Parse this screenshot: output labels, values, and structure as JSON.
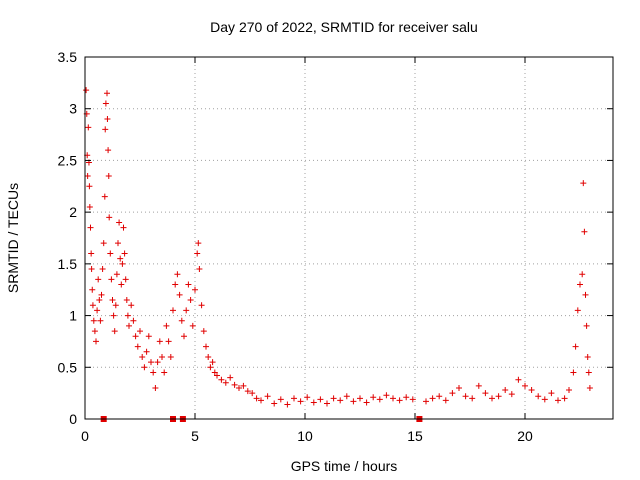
{
  "chart_data": {
    "type": "scatter",
    "title": "Day 270 of 2022, SRMTID for receiver salu",
    "xlabel": "GPS time / hours",
    "ylabel": "SRMTID / TECUs",
    "xlim": [
      0,
      24
    ],
    "ylim": [
      0,
      3.5
    ],
    "xticks": [
      0,
      5,
      10,
      15,
      20
    ],
    "xtick_labels": [
      "0",
      "5",
      "10",
      "15",
      "20"
    ],
    "yticks": [
      0,
      0.5,
      1,
      1.5,
      2,
      2.5,
      3,
      3.5
    ],
    "ytick_labels": [
      "0",
      "0.5",
      "1",
      "1.5",
      "2",
      "2.5",
      "3",
      "3.5"
    ],
    "grid": true,
    "marker": "+",
    "color": "#e00000",
    "series": [
      {
        "name": "SRMTID",
        "points": [
          [
            0.05,
            3.18
          ],
          [
            0.08,
            2.95
          ],
          [
            0.1,
            2.55
          ],
          [
            0.12,
            2.35
          ],
          [
            0.15,
            2.82
          ],
          [
            0.18,
            2.48
          ],
          [
            0.2,
            2.25
          ],
          [
            0.22,
            2.05
          ],
          [
            0.25,
            1.85
          ],
          [
            0.28,
            1.6
          ],
          [
            0.3,
            1.45
          ],
          [
            0.33,
            1.25
          ],
          [
            0.36,
            1.1
          ],
          [
            0.4,
            0.95
          ],
          [
            0.45,
            0.85
          ],
          [
            0.5,
            0.75
          ],
          [
            0.55,
            1.05
          ],
          [
            0.6,
            1.35
          ],
          [
            0.65,
            1.15
          ],
          [
            0.7,
            0.95
          ],
          [
            0.75,
            1.2
          ],
          [
            0.8,
            1.45
          ],
          [
            0.85,
            1.7
          ],
          [
            0.9,
            2.15
          ],
          [
            0.92,
            2.8
          ],
          [
            0.95,
            3.05
          ],
          [
            1.0,
            3.15
          ],
          [
            1.02,
            2.9
          ],
          [
            1.05,
            2.6
          ],
          [
            1.08,
            2.35
          ],
          [
            1.1,
            1.95
          ],
          [
            1.15,
            1.6
          ],
          [
            1.2,
            1.35
          ],
          [
            1.25,
            1.15
          ],
          [
            1.3,
            1.0
          ],
          [
            1.35,
            0.85
          ],
          [
            1.4,
            1.1
          ],
          [
            1.45,
            1.4
          ],
          [
            1.5,
            1.7
          ],
          [
            1.55,
            1.9
          ],
          [
            1.6,
            1.55
          ],
          [
            1.65,
            1.3
          ],
          [
            1.7,
            1.5
          ],
          [
            1.75,
            1.85
          ],
          [
            1.8,
            1.6
          ],
          [
            1.85,
            1.35
          ],
          [
            1.9,
            1.15
          ],
          [
            1.95,
            1.0
          ],
          [
            2.0,
            0.9
          ],
          [
            2.1,
            1.1
          ],
          [
            2.2,
            0.95
          ],
          [
            2.3,
            0.8
          ],
          [
            2.4,
            0.7
          ],
          [
            2.5,
            0.85
          ],
          [
            2.6,
            0.6
          ],
          [
            2.7,
            0.5
          ],
          [
            2.8,
            0.65
          ],
          [
            2.9,
            0.8
          ],
          [
            3.0,
            0.55
          ],
          [
            3.1,
            0.45
          ],
          [
            3.2,
            0.3
          ],
          [
            3.3,
            0.55
          ],
          [
            3.4,
            0.75
          ],
          [
            3.5,
            0.6
          ],
          [
            3.6,
            0.45
          ],
          [
            3.7,
            0.9
          ],
          [
            3.8,
            0.75
          ],
          [
            3.9,
            0.6
          ],
          [
            4.0,
            1.05
          ],
          [
            4.1,
            1.3
          ],
          [
            4.2,
            1.4
          ],
          [
            4.3,
            1.2
          ],
          [
            4.4,
            0.95
          ],
          [
            4.5,
            0.8
          ],
          [
            4.6,
            1.05
          ],
          [
            4.7,
            1.3
          ],
          [
            4.8,
            1.15
          ],
          [
            4.9,
            0.9
          ],
          [
            5.0,
            1.25
          ],
          [
            5.1,
            1.6
          ],
          [
            5.15,
            1.7
          ],
          [
            5.2,
            1.45
          ],
          [
            5.3,
            1.1
          ],
          [
            5.4,
            0.85
          ],
          [
            5.5,
            0.7
          ],
          [
            5.6,
            0.6
          ],
          [
            5.7,
            0.5
          ],
          [
            5.8,
            0.55
          ],
          [
            5.9,
            0.45
          ],
          [
            6.0,
            0.42
          ],
          [
            6.2,
            0.38
          ],
          [
            6.4,
            0.35
          ],
          [
            6.6,
            0.4
          ],
          [
            6.8,
            0.33
          ],
          [
            7.0,
            0.3
          ],
          [
            7.2,
            0.32
          ],
          [
            7.4,
            0.27
          ],
          [
            7.6,
            0.25
          ],
          [
            7.8,
            0.2
          ],
          [
            8.0,
            0.18
          ],
          [
            8.3,
            0.22
          ],
          [
            8.6,
            0.15
          ],
          [
            8.9,
            0.19
          ],
          [
            9.2,
            0.14
          ],
          [
            9.5,
            0.2
          ],
          [
            9.8,
            0.17
          ],
          [
            10.1,
            0.21
          ],
          [
            10.4,
            0.16
          ],
          [
            10.7,
            0.19
          ],
          [
            11.0,
            0.15
          ],
          [
            11.3,
            0.2
          ],
          [
            11.6,
            0.18
          ],
          [
            11.9,
            0.22
          ],
          [
            12.2,
            0.17
          ],
          [
            12.5,
            0.2
          ],
          [
            12.8,
            0.16
          ],
          [
            13.1,
            0.21
          ],
          [
            13.4,
            0.19
          ],
          [
            13.7,
            0.23
          ],
          [
            14.0,
            0.2
          ],
          [
            14.3,
            0.18
          ],
          [
            14.6,
            0.21
          ],
          [
            14.9,
            0.19
          ],
          [
            15.5,
            0.17
          ],
          [
            15.8,
            0.2
          ],
          [
            16.1,
            0.22
          ],
          [
            16.4,
            0.18
          ],
          [
            16.7,
            0.25
          ],
          [
            17.0,
            0.3
          ],
          [
            17.3,
            0.22
          ],
          [
            17.6,
            0.2
          ],
          [
            17.9,
            0.32
          ],
          [
            18.2,
            0.25
          ],
          [
            18.5,
            0.2
          ],
          [
            18.8,
            0.22
          ],
          [
            19.1,
            0.28
          ],
          [
            19.4,
            0.24
          ],
          [
            19.7,
            0.38
          ],
          [
            20.0,
            0.32
          ],
          [
            20.3,
            0.28
          ],
          [
            20.6,
            0.22
          ],
          [
            20.9,
            0.19
          ],
          [
            21.2,
            0.25
          ],
          [
            21.5,
            0.18
          ],
          [
            21.8,
            0.2
          ],
          [
            22.0,
            0.28
          ],
          [
            22.2,
            0.45
          ],
          [
            22.3,
            0.7
          ],
          [
            22.4,
            1.05
          ],
          [
            22.5,
            1.3
          ],
          [
            22.6,
            1.4
          ],
          [
            22.65,
            2.28
          ],
          [
            22.7,
            1.81
          ],
          [
            22.75,
            1.2
          ],
          [
            22.8,
            0.9
          ],
          [
            22.85,
            0.6
          ],
          [
            22.9,
            0.45
          ],
          [
            22.95,
            0.3
          ]
        ]
      }
    ],
    "baseline_markers": {
      "shape": "square",
      "y": 0,
      "x": [
        0.85,
        4.0,
        4.45,
        15.2
      ]
    }
  }
}
